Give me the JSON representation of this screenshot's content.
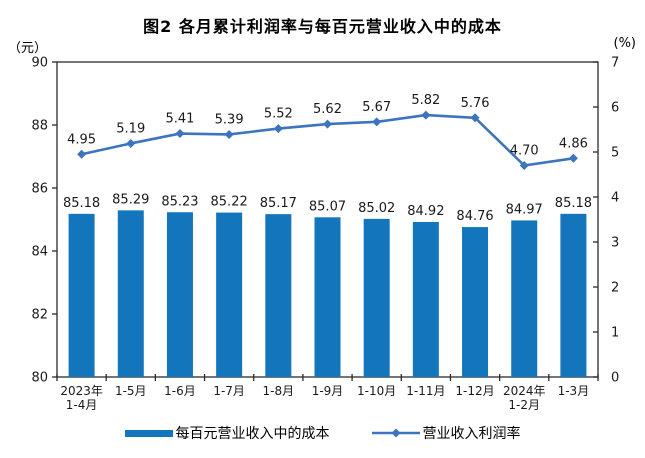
{
  "chart_data": {
    "type": "bar+line",
    "title": "图2 各月累计利润率与每百元营业收入中的成本",
    "categories": [
      [
        "2023年",
        "1-4月"
      ],
      [
        "1-5月"
      ],
      [
        "1-6月"
      ],
      [
        "1-7月"
      ],
      [
        "1-8月"
      ],
      [
        "1-9月"
      ],
      [
        "1-10月"
      ],
      [
        "1-11月"
      ],
      [
        "1-12月"
      ],
      [
        "2024年",
        "1-2月"
      ],
      [
        "1-3月"
      ]
    ],
    "series": [
      {
        "name": "每百元营业收入中的成本",
        "type": "bar",
        "axis": "left",
        "color": "#1375BC",
        "values": [
          85.18,
          85.29,
          85.23,
          85.22,
          85.17,
          85.07,
          85.02,
          84.92,
          84.76,
          84.97,
          85.18
        ]
      },
      {
        "name": "营业收入利润率",
        "type": "line",
        "axis": "right",
        "marker": "diamond",
        "color": "#3D74BE",
        "values": [
          4.95,
          5.19,
          5.41,
          5.39,
          5.52,
          5.62,
          5.67,
          5.82,
          5.76,
          4.7,
          4.86
        ]
      }
    ],
    "left_axis": {
      "unit": "（元）",
      "min": 80,
      "max": 90,
      "ticks": [
        80,
        82,
        84,
        86,
        88,
        90
      ]
    },
    "right_axis": {
      "unit": "(%)",
      "min": 0,
      "max": 7,
      "ticks": [
        0,
        1,
        2,
        3,
        4,
        5,
        6,
        7
      ]
    },
    "grid": false,
    "legend_position": "bottom",
    "colors": {
      "axis": "#2b2b2b",
      "label_text": "#1a1a1a",
      "background": "#ffffff"
    }
  }
}
